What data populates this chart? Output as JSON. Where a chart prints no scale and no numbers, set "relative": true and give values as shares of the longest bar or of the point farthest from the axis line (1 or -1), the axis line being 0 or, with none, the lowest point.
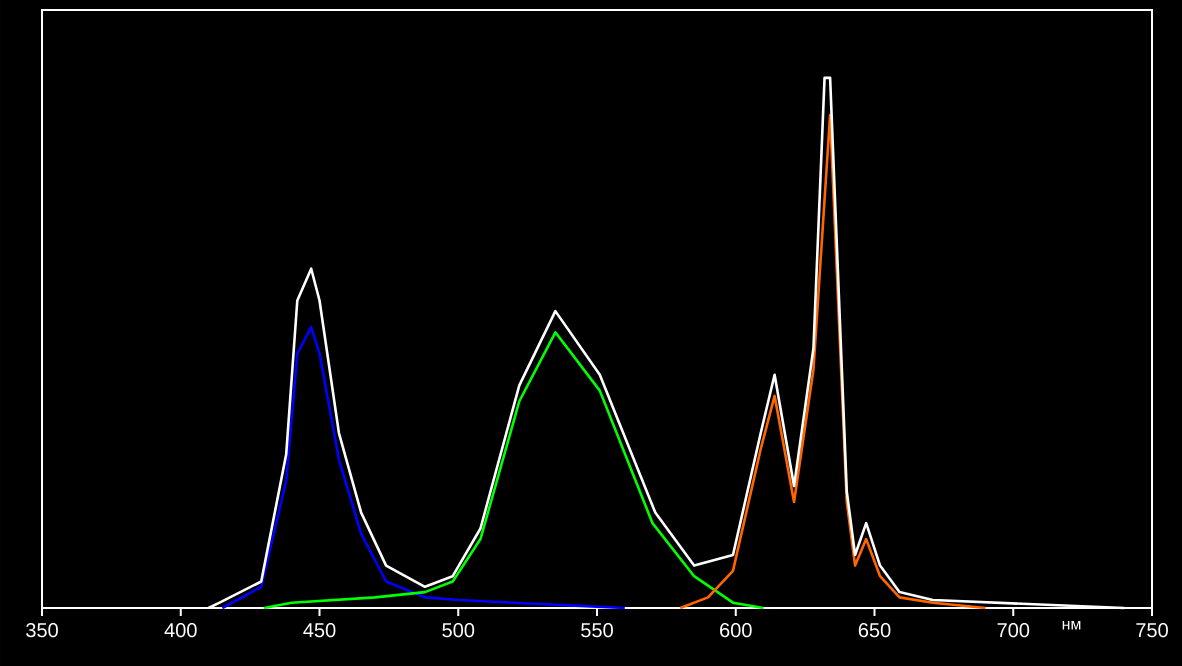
{
  "chart_data": {
    "type": "line",
    "relative": true,
    "xlabel": "нм",
    "xlim": [
      350,
      750
    ],
    "xticks": [
      350,
      400,
      450,
      500,
      550,
      600,
      650,
      700,
      750
    ],
    "grid": false,
    "marker": "none",
    "line_style": "solid",
    "series": [
      {
        "color": "#0000ff",
        "x": [
          415,
          429,
          438,
          442,
          447,
          450,
          457,
          465,
          474,
          488,
          500,
          520,
          540,
          560
        ],
        "values": [
          0,
          0.04,
          0.24,
          0.48,
          0.53,
          0.48,
          0.28,
          0.14,
          0.05,
          0.02,
          0.015,
          0.01,
          0.005,
          0
        ]
      },
      {
        "color": "#00ff00",
        "x": [
          430,
          440,
          470,
          488,
          498,
          508,
          522,
          535,
          551,
          570,
          585,
          599,
          610
        ],
        "values": [
          0,
          0.01,
          0.02,
          0.03,
          0.05,
          0.13,
          0.39,
          0.52,
          0.41,
          0.16,
          0.06,
          0.01,
          0
        ]
      },
      {
        "color": "#ff6600",
        "x": [
          580,
          590,
          599,
          609,
          614,
          621,
          628,
          634,
          640,
          643,
          647,
          652,
          659,
          671,
          690
        ],
        "values": [
          0,
          0.02,
          0.07,
          0.3,
          0.4,
          0.2,
          0.45,
          0.93,
          0.2,
          0.08,
          0.13,
          0.06,
          0.02,
          0.01,
          0
        ]
      },
      {
        "color": "#ffffff",
        "x": [
          410,
          414,
          429,
          438,
          442,
          447,
          450,
          457,
          465,
          474,
          488,
          498,
          508,
          522,
          535,
          551,
          571,
          585,
          599,
          609,
          614,
          621,
          628,
          632,
          634,
          640,
          643,
          647,
          652,
          659,
          671,
          740
        ],
        "values": [
          0,
          0.01,
          0.05,
          0.29,
          0.58,
          0.64,
          0.58,
          0.33,
          0.18,
          0.08,
          0.04,
          0.06,
          0.15,
          0.42,
          0.56,
          0.44,
          0.18,
          0.08,
          0.1,
          0.33,
          0.44,
          0.23,
          0.49,
          1.0,
          1.0,
          0.22,
          0.1,
          0.16,
          0.08,
          0.03,
          0.015,
          0
        ]
      }
    ]
  }
}
